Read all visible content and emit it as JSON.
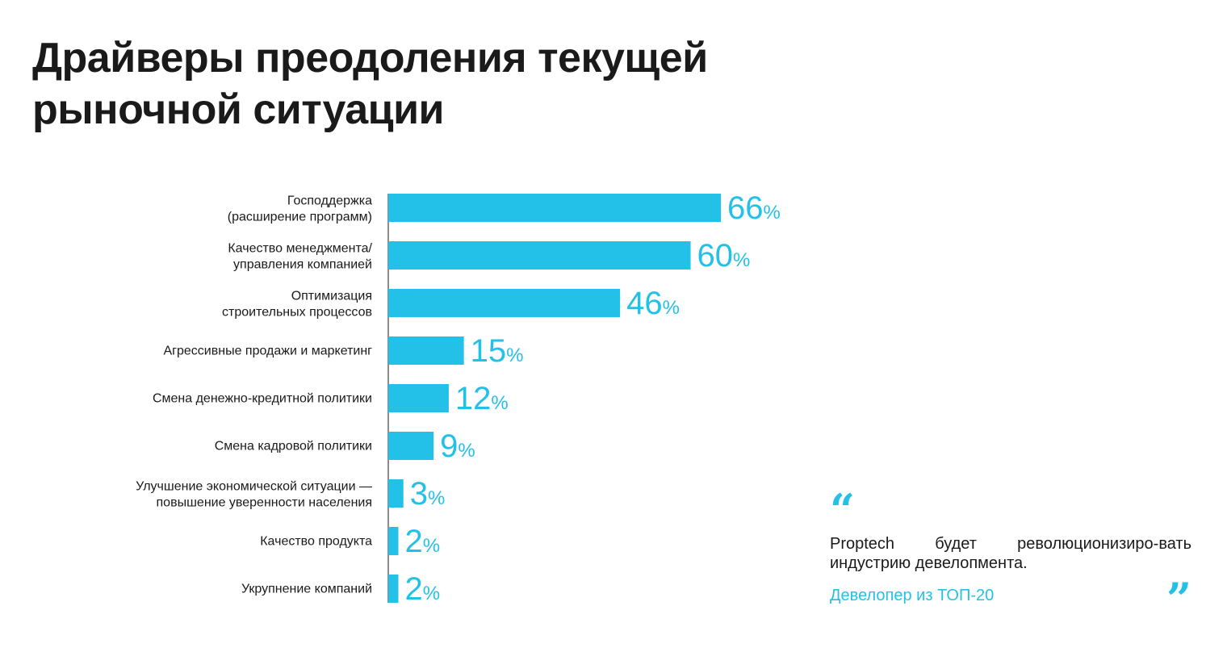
{
  "title": {
    "line1": "Драйверы преодоления текущей",
    "line2": "рыночной ситуации"
  },
  "colors": {
    "bar": "#23c1e8",
    "text": "#1a1a1a",
    "axis": "#1a1a1a"
  },
  "chart_data": {
    "type": "bar",
    "orientation": "horizontal",
    "categories": [
      [
        "Господдержка",
        "(расширение программ)"
      ],
      [
        "Качество менеджмента/",
        "управления компанией"
      ],
      [
        "Оптимизация",
        "строительных процессов"
      ],
      [
        "Агрессивные продажи и маркетинг"
      ],
      [
        "Смена денежно-кредитной политики"
      ],
      [
        "Смена кадровой политики"
      ],
      [
        "Улучшение экономической ситуации —",
        "повышение уверенности населения"
      ],
      [
        "Качество продукта"
      ],
      [
        "Укрупнение компаний"
      ]
    ],
    "values": [
      66,
      60,
      46,
      15,
      12,
      9,
      3,
      2,
      2
    ],
    "value_suffix": "%",
    "title": "",
    "xlabel": "",
    "ylabel": "",
    "xlim": [
      0,
      100
    ],
    "grid": false,
    "legend": "none"
  },
  "quote": {
    "open_mark": "“",
    "text": "Proptech будет революционизиро-вать индустрию девелопмента.",
    "author": "Девелопер из ТОП-20",
    "close_mark": "”"
  }
}
